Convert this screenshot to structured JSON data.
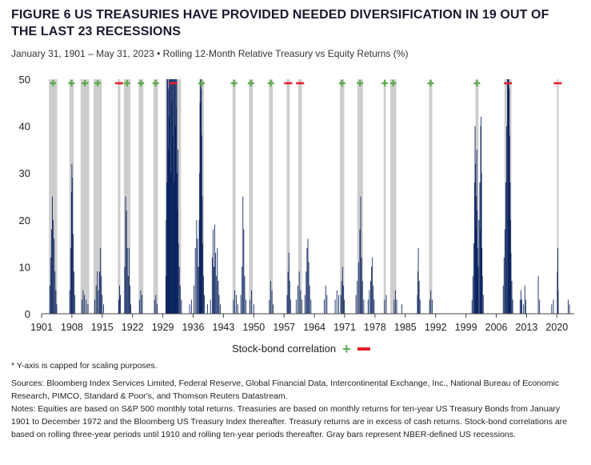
{
  "title": "FIGURE 6  US TREASURIES HAVE PROVIDED NEEDED DIVERSIFICATION IN 19 OUT OF THE LAST 23 RECESSIONS",
  "subtitle": "January 31, 1901 – May 31, 2023 • Rolling 12-Month Relative Treasury vs Equity Returns (%)",
  "legend": {
    "label": "Stock-bond correlation",
    "plus_color": "#5bab4d",
    "minus_color": "#e2202f"
  },
  "footnote": "* Y-axis is capped for scaling purposes.",
  "sources": "Sources: Bloomberg Index Services Limited, Federal Reserve, Global Financial Data, Intercontinental Exchange, Inc., National Bureau of Economic Research, PIMCO, Standard & Poor's, and Thomson Reuters Datastream.",
  "notes": "Notes: Equities are based on S&P 500 monthly total returns. Treasuries are based on monthly returns for ten-year US Treasury Bonds from January 1901 to December 1972 and the Bloomberg US Treasury Index thereafter. Treasury returns are in excess of cash returns. Stock-bond correlations are based on rolling three-year periods until 1910 and rolling ten-year periods thereafter. Gray bars represent NBER-defined US recessions.",
  "chart_data": {
    "type": "bar",
    "xlim": [
      1901,
      2024
    ],
    "ylim": [
      0,
      50
    ],
    "yticks": [
      0,
      10,
      20,
      30,
      40,
      50
    ],
    "xticks": [
      1901,
      1908,
      1915,
      1922,
      1929,
      1936,
      1943,
      1950,
      1957,
      1964,
      1971,
      1978,
      1985,
      1992,
      1999,
      2006,
      2013,
      2020
    ],
    "colors": {
      "bar": "#0d2560",
      "recession": "#cdcdcd"
    },
    "recessions": [
      {
        "start": 1902.7,
        "end": 1904.6,
        "correlation": "+"
      },
      {
        "start": 1907.4,
        "end": 1908.4,
        "correlation": "+"
      },
      {
        "start": 1910.0,
        "end": 1912.0,
        "correlation": "+"
      },
      {
        "start": 1913.0,
        "end": 1914.9,
        "correlation": "+"
      },
      {
        "start": 1918.6,
        "end": 1919.2,
        "correlation": "-"
      },
      {
        "start": 1920.0,
        "end": 1921.5,
        "correlation": "+"
      },
      {
        "start": 1923.4,
        "end": 1924.5,
        "correlation": "+"
      },
      {
        "start": 1926.8,
        "end": 1927.9,
        "correlation": "+"
      },
      {
        "start": 1929.6,
        "end": 1933.2,
        "correlation": "-"
      },
      {
        "start": 1937.4,
        "end": 1938.5,
        "correlation": "+"
      },
      {
        "start": 1945.1,
        "end": 1945.8,
        "correlation": "+"
      },
      {
        "start": 1948.9,
        "end": 1949.8,
        "correlation": "+"
      },
      {
        "start": 1953.5,
        "end": 1954.4,
        "correlation": "+"
      },
      {
        "start": 1957.6,
        "end": 1958.3,
        "correlation": "-"
      },
      {
        "start": 1960.3,
        "end": 1961.1,
        "correlation": "-"
      },
      {
        "start": 1969.9,
        "end": 1970.9,
        "correlation": "+"
      },
      {
        "start": 1973.9,
        "end": 1975.2,
        "correlation": "+"
      },
      {
        "start": 1980.0,
        "end": 1980.5,
        "correlation": "+"
      },
      {
        "start": 1981.5,
        "end": 1982.9,
        "correlation": "+"
      },
      {
        "start": 1990.5,
        "end": 1991.2,
        "correlation": "+"
      },
      {
        "start": 2001.2,
        "end": 2001.9,
        "correlation": "+"
      },
      {
        "start": 2007.9,
        "end": 2009.5,
        "correlation": "-"
      },
      {
        "start": 2020.0,
        "end": 2020.4,
        "correlation": "-"
      }
    ],
    "spikes": [
      [
        1902.9,
        6
      ],
      [
        1903.1,
        12
      ],
      [
        1903.3,
        18
      ],
      [
        1903.5,
        25
      ],
      [
        1903.7,
        20
      ],
      [
        1903.9,
        16
      ],
      [
        1904.1,
        9
      ],
      [
        1904.3,
        5
      ],
      [
        1904.5,
        2
      ],
      [
        1907.5,
        5
      ],
      [
        1907.7,
        14
      ],
      [
        1907.9,
        26
      ],
      [
        1908.0,
        32
      ],
      [
        1908.1,
        29
      ],
      [
        1908.3,
        17
      ],
      [
        1908.5,
        9
      ],
      [
        1908.7,
        4
      ],
      [
        1910.3,
        3
      ],
      [
        1910.6,
        5
      ],
      [
        1910.9,
        4
      ],
      [
        1911.3,
        3
      ],
      [
        1911.7,
        2
      ],
      [
        1913.3,
        3
      ],
      [
        1913.6,
        6
      ],
      [
        1913.9,
        9
      ],
      [
        1914.1,
        5
      ],
      [
        1914.4,
        9
      ],
      [
        1914.6,
        14
      ],
      [
        1914.8,
        8
      ],
      [
        1915.0,
        4
      ],
      [
        1915.3,
        2
      ],
      [
        1918.8,
        3
      ],
      [
        1919.0,
        6
      ],
      [
        1919.2,
        4
      ],
      [
        1920.2,
        10
      ],
      [
        1920.4,
        25
      ],
      [
        1920.6,
        22
      ],
      [
        1920.8,
        14
      ],
      [
        1921.0,
        8
      ],
      [
        1921.2,
        14
      ],
      [
        1921.4,
        6
      ],
      [
        1921.6,
        2
      ],
      [
        1923.6,
        3
      ],
      [
        1923.9,
        5
      ],
      [
        1924.2,
        4
      ],
      [
        1927.1,
        3
      ],
      [
        1927.4,
        4
      ],
      [
        1927.7,
        2
      ],
      [
        1929.7,
        8
      ],
      [
        1929.8,
        20
      ],
      [
        1929.9,
        28
      ],
      [
        1930.0,
        50
      ],
      [
        1930.1,
        50
      ],
      [
        1930.2,
        48
      ],
      [
        1930.3,
        35
      ],
      [
        1930.4,
        50
      ],
      [
        1930.5,
        42
      ],
      [
        1930.6,
        50
      ],
      [
        1930.7,
        50
      ],
      [
        1930.8,
        30
      ],
      [
        1930.9,
        50
      ],
      [
        1931.0,
        50
      ],
      [
        1931.1,
        45
      ],
      [
        1931.2,
        50
      ],
      [
        1931.3,
        38
      ],
      [
        1931.4,
        50
      ],
      [
        1931.5,
        50
      ],
      [
        1931.6,
        28
      ],
      [
        1931.7,
        50
      ],
      [
        1931.8,
        50
      ],
      [
        1931.9,
        40
      ],
      [
        1932.0,
        50
      ],
      [
        1932.1,
        44
      ],
      [
        1932.2,
        50
      ],
      [
        1932.3,
        30
      ],
      [
        1932.4,
        22
      ],
      [
        1932.5,
        35
      ],
      [
        1932.6,
        15
      ],
      [
        1932.8,
        10
      ],
      [
        1933.0,
        6
      ],
      [
        1933.3,
        3
      ],
      [
        1935.2,
        2
      ],
      [
        1935.6,
        3
      ],
      [
        1936.2,
        6
      ],
      [
        1936.5,
        14
      ],
      [
        1936.8,
        20
      ],
      [
        1937.0,
        16
      ],
      [
        1937.2,
        10
      ],
      [
        1937.4,
        20
      ],
      [
        1937.5,
        30
      ],
      [
        1937.6,
        45
      ],
      [
        1937.7,
        50
      ],
      [
        1937.8,
        50
      ],
      [
        1937.9,
        48
      ],
      [
        1938.0,
        38
      ],
      [
        1938.1,
        25
      ],
      [
        1938.2,
        15
      ],
      [
        1938.4,
        8
      ],
      [
        1938.6,
        4
      ],
      [
        1939.3,
        2
      ],
      [
        1940.0,
        3
      ],
      [
        1940.4,
        12
      ],
      [
        1940.6,
        18
      ],
      [
        1940.8,
        10
      ],
      [
        1941.0,
        19
      ],
      [
        1941.2,
        13
      ],
      [
        1941.4,
        8
      ],
      [
        1941.6,
        14
      ],
      [
        1941.8,
        7
      ],
      [
        1942.0,
        4
      ],
      [
        1942.3,
        2
      ],
      [
        1945.3,
        3
      ],
      [
        1945.6,
        5
      ],
      [
        1946.0,
        4
      ],
      [
        1946.3,
        2
      ],
      [
        1947.0,
        4
      ],
      [
        1947.3,
        10
      ],
      [
        1947.5,
        25
      ],
      [
        1947.7,
        18
      ],
      [
        1947.9,
        8
      ],
      [
        1948.2,
        3
      ],
      [
        1949.1,
        3
      ],
      [
        1949.5,
        5
      ],
      [
        1950.0,
        2
      ],
      [
        1953.6,
        3
      ],
      [
        1953.9,
        7
      ],
      [
        1954.2,
        5
      ],
      [
        1954.5,
        2
      ],
      [
        1957.7,
        4
      ],
      [
        1957.9,
        9
      ],
      [
        1958.1,
        13
      ],
      [
        1958.3,
        7
      ],
      [
        1958.5,
        3
      ],
      [
        1959.8,
        3
      ],
      [
        1960.2,
        6
      ],
      [
        1960.5,
        9
      ],
      [
        1960.8,
        5
      ],
      [
        1961.1,
        3
      ],
      [
        1961.8,
        4
      ],
      [
        1962.1,
        9
      ],
      [
        1962.3,
        14
      ],
      [
        1962.5,
        16
      ],
      [
        1962.7,
        11
      ],
      [
        1962.9,
        6
      ],
      [
        1963.2,
        3
      ],
      [
        1966.3,
        3
      ],
      [
        1966.6,
        6
      ],
      [
        1966.9,
        4
      ],
      [
        1968.8,
        3
      ],
      [
        1969.2,
        5
      ],
      [
        1969.6,
        4
      ],
      [
        1970.1,
        4
      ],
      [
        1970.3,
        7
      ],
      [
        1970.5,
        10
      ],
      [
        1970.7,
        6
      ],
      [
        1970.9,
        3
      ],
      [
        1973.6,
        4
      ],
      [
        1973.9,
        7
      ],
      [
        1974.2,
        11
      ],
      [
        1974.5,
        18
      ],
      [
        1974.7,
        25
      ],
      [
        1974.9,
        12
      ],
      [
        1975.1,
        7
      ],
      [
        1975.4,
        3
      ],
      [
        1976.4,
        3
      ],
      [
        1976.7,
        5
      ],
      [
        1977.0,
        7
      ],
      [
        1977.2,
        10
      ],
      [
        1977.4,
        12
      ],
      [
        1977.6,
        6
      ],
      [
        1977.8,
        3
      ],
      [
        1980.2,
        3
      ],
      [
        1980.6,
        4
      ],
      [
        1982.4,
        3
      ],
      [
        1982.7,
        5
      ],
      [
        1983.0,
        3
      ],
      [
        1984.2,
        2
      ],
      [
        1987.8,
        4
      ],
      [
        1987.9,
        9
      ],
      [
        1988.0,
        14
      ],
      [
        1988.2,
        7
      ],
      [
        1988.4,
        3
      ],
      [
        1990.6,
        3
      ],
      [
        1990.9,
        5
      ],
      [
        1991.2,
        3
      ],
      [
        2000.4,
        3
      ],
      [
        2000.6,
        8
      ],
      [
        2000.8,
        15
      ],
      [
        2001.0,
        28
      ],
      [
        2001.1,
        40
      ],
      [
        2001.2,
        32
      ],
      [
        2001.3,
        18
      ],
      [
        2001.4,
        25
      ],
      [
        2001.5,
        35
      ],
      [
        2001.6,
        22
      ],
      [
        2001.7,
        14
      ],
      [
        2001.8,
        10
      ],
      [
        2002.0,
        20
      ],
      [
        2002.2,
        28
      ],
      [
        2002.3,
        18
      ],
      [
        2002.4,
        40
      ],
      [
        2002.5,
        42
      ],
      [
        2002.6,
        30
      ],
      [
        2002.7,
        14
      ],
      [
        2002.8,
        8
      ],
      [
        2003.0,
        4
      ],
      [
        2007.6,
        6
      ],
      [
        2007.8,
        12
      ],
      [
        2008.0,
        18
      ],
      [
        2008.2,
        28
      ],
      [
        2008.4,
        40
      ],
      [
        2008.6,
        50
      ],
      [
        2008.7,
        50
      ],
      [
        2008.8,
        50
      ],
      [
        2008.9,
        50
      ],
      [
        2009.0,
        48
      ],
      [
        2009.1,
        38
      ],
      [
        2009.2,
        28
      ],
      [
        2009.3,
        20
      ],
      [
        2009.4,
        13
      ],
      [
        2009.6,
        7
      ],
      [
        2009.8,
        3
      ],
      [
        2011.5,
        3
      ],
      [
        2011.7,
        5
      ],
      [
        2011.9,
        3
      ],
      [
        2012.3,
        2
      ],
      [
        2012.6,
        6
      ],
      [
        2012.8,
        3
      ],
      [
        2015.7,
        8
      ],
      [
        2016.0,
        3
      ],
      [
        2018.8,
        2
      ],
      [
        2019.2,
        3
      ],
      [
        2020.1,
        9
      ],
      [
        2020.2,
        14
      ],
      [
        2020.3,
        5
      ],
      [
        2022.6,
        3
      ],
      [
        2022.9,
        2
      ]
    ]
  }
}
